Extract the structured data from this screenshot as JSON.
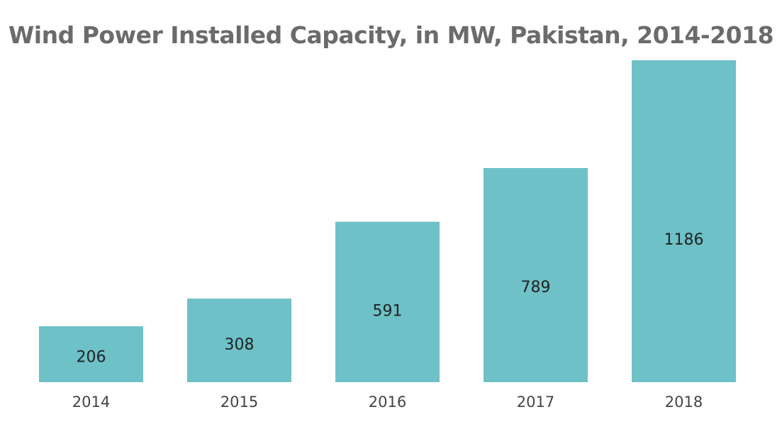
{
  "chart_data": {
    "type": "bar",
    "title": "Wind Power Installed Capacity, in MW, Pakistan, 2014-2018",
    "categories": [
      "2014",
      "2015",
      "2016",
      "2017",
      "2018"
    ],
    "values": [
      206,
      308,
      591,
      789,
      1186
    ],
    "data_labels": [
      "206",
      "308",
      "591",
      "789",
      "1186"
    ],
    "xlabel": "",
    "ylabel": "",
    "ylim": [
      0,
      1186
    ],
    "grid": false,
    "legend": "none",
    "bar_color": "#6dc1c7"
  }
}
